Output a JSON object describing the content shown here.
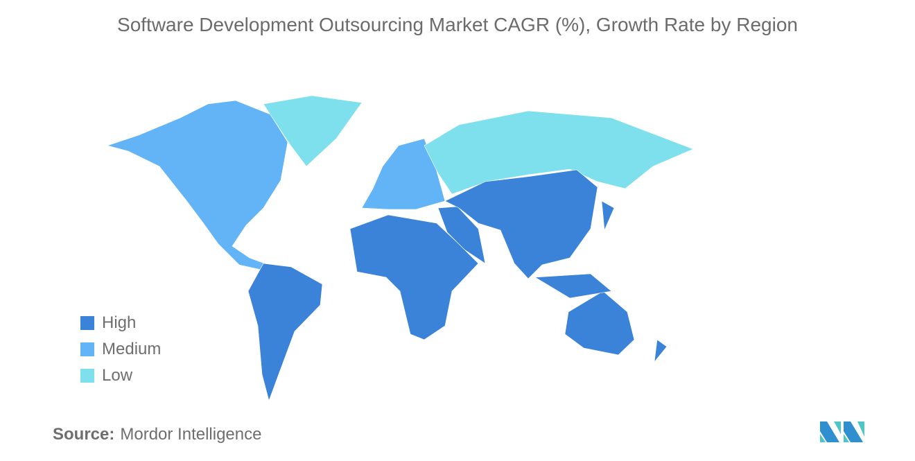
{
  "title": "Software Development Outsourcing Market CAGR (%), Growth Rate by Region",
  "chart_data": {
    "type": "choropleth",
    "title": "Software Development Outsourcing Market CAGR (%), Growth Rate by Region",
    "legend": [
      {
        "label": "High",
        "color": "#3a83d9"
      },
      {
        "label": "Medium",
        "color": "#62b4f7"
      },
      {
        "label": "Low",
        "color": "#7ee0ec"
      }
    ],
    "legend_position": "bottom-left",
    "regions": [
      {
        "name": "North America",
        "category": "Medium"
      },
      {
        "name": "Europe",
        "category": "Medium"
      },
      {
        "name": "Greenland",
        "category": "Low"
      },
      {
        "name": "Russia",
        "category": "Low"
      },
      {
        "name": "South America",
        "category": "High"
      },
      {
        "name": "Africa",
        "category": "High"
      },
      {
        "name": "Middle East",
        "category": "High"
      },
      {
        "name": "Asia",
        "category": "High"
      },
      {
        "name": "Australia & Oceania",
        "category": "High"
      }
    ],
    "no_data_color": "#a0a0a0"
  },
  "source": {
    "label": "Source:",
    "value": "Mordor Intelligence"
  }
}
